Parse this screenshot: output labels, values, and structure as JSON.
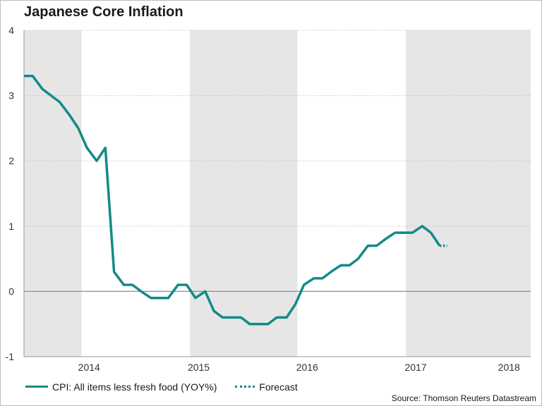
{
  "chart_data": {
    "type": "line",
    "title": "Japanese Core Inflation",
    "xlabel": "",
    "ylabel": "",
    "ylim": [
      -1,
      4
    ],
    "yticks": [
      -1,
      0,
      1,
      2,
      3,
      4
    ],
    "x_domain": [
      2013.75,
      2018.42
    ],
    "x_labels": [
      {
        "label": "2014",
        "x": 2014.35
      },
      {
        "label": "2015",
        "x": 2015.36
      },
      {
        "label": "2016",
        "x": 2016.36
      },
      {
        "label": "2017",
        "x": 2017.36
      },
      {
        "label": "2018",
        "x": 2018.22
      }
    ],
    "shaded_bands": [
      [
        2013.75,
        2014.28
      ],
      [
        2015.28,
        2016.27
      ],
      [
        2017.27,
        2018.42
      ]
    ],
    "grid": true,
    "legend_position": "bottom-left",
    "series": [
      {
        "name": "CPI: All items less fresh food (YOY%)",
        "style": "solid",
        "color": "#138a88",
        "points": [
          [
            2013.75,
            3.3
          ],
          [
            2013.83,
            3.3
          ],
          [
            2013.92,
            3.1
          ],
          [
            2014.0,
            3.0
          ],
          [
            2014.08,
            2.9
          ],
          [
            2014.17,
            2.7
          ],
          [
            2014.25,
            2.5
          ],
          [
            2014.33,
            2.2
          ],
          [
            2014.42,
            2.0
          ],
          [
            2014.5,
            2.2
          ],
          [
            2014.58,
            0.3
          ],
          [
            2014.67,
            0.1
          ],
          [
            2014.75,
            0.1
          ],
          [
            2014.83,
            0.0
          ],
          [
            2014.92,
            -0.1
          ],
          [
            2015.0,
            -0.1
          ],
          [
            2015.08,
            -0.1
          ],
          [
            2015.17,
            0.1
          ],
          [
            2015.25,
            0.1
          ],
          [
            2015.33,
            -0.1
          ],
          [
            2015.42,
            0.0
          ],
          [
            2015.5,
            -0.3
          ],
          [
            2015.58,
            -0.4
          ],
          [
            2015.67,
            -0.4
          ],
          [
            2015.75,
            -0.4
          ],
          [
            2015.83,
            -0.5
          ],
          [
            2015.92,
            -0.5
          ],
          [
            2016.0,
            -0.5
          ],
          [
            2016.08,
            -0.4
          ],
          [
            2016.17,
            -0.4
          ],
          [
            2016.25,
            -0.2
          ],
          [
            2016.33,
            0.1
          ],
          [
            2016.42,
            0.2
          ],
          [
            2016.5,
            0.2
          ],
          [
            2016.58,
            0.3
          ],
          [
            2016.67,
            0.4
          ],
          [
            2016.75,
            0.4
          ],
          [
            2016.83,
            0.5
          ],
          [
            2016.92,
            0.7
          ],
          [
            2017.0,
            0.7
          ],
          [
            2017.08,
            0.8
          ],
          [
            2017.17,
            0.9
          ],
          [
            2017.25,
            0.9
          ],
          [
            2017.33,
            0.9
          ],
          [
            2017.42,
            1.0
          ],
          [
            2017.5,
            0.9
          ],
          [
            2017.58,
            0.7
          ]
        ]
      },
      {
        "name": "Forecast",
        "style": "dotted",
        "color": "#138a88",
        "points": [
          [
            2017.58,
            0.7
          ],
          [
            2017.65,
            0.7
          ]
        ]
      }
    ],
    "source": "Source: Thomson Reuters Datastream"
  }
}
